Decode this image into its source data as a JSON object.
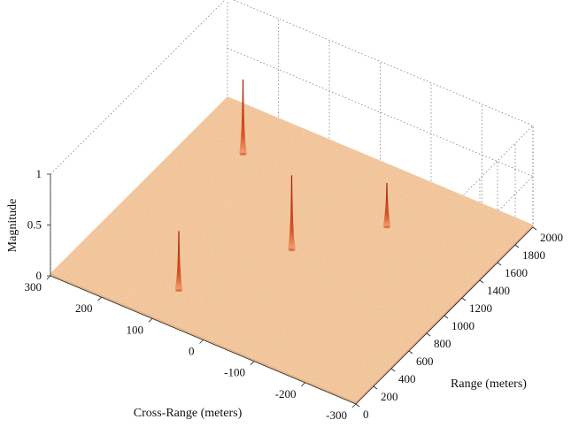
{
  "chart_data": {
    "type": "surface",
    "title": "",
    "xlabel": "Cross-Range (meters)",
    "ylabel": "Range (meters)",
    "zlabel": "Magnitude",
    "xlim": [
      -300,
      300
    ],
    "ylim": [
      0,
      2000
    ],
    "zlim": [
      0,
      1
    ],
    "x_ticks": [
      "300",
      "200",
      "100",
      "0",
      "-100",
      "-200",
      "-300"
    ],
    "y_ticks": [
      "0",
      "200",
      "400",
      "600",
      "800",
      "1000",
      "1200",
      "1400",
      "1600",
      "1800",
      "2000"
    ],
    "z_ticks": [
      "0",
      "0.5",
      "1"
    ],
    "grid": true,
    "colormap": "copper-like (peach base to dark red peaks)",
    "colors": {
      "base": "#f3c9a0",
      "peak": "#b8250c"
    },
    "targets": [
      {
        "cross_range": 100,
        "range": 300,
        "magnitude": 0.6
      },
      {
        "cross_range": 0,
        "range": 1000,
        "magnitude": 0.75
      },
      {
        "cross_range": 200,
        "range": 1600,
        "magnitude": 0.75
      },
      {
        "cross_range": -100,
        "range": 1500,
        "magnitude": 0.45
      }
    ]
  }
}
